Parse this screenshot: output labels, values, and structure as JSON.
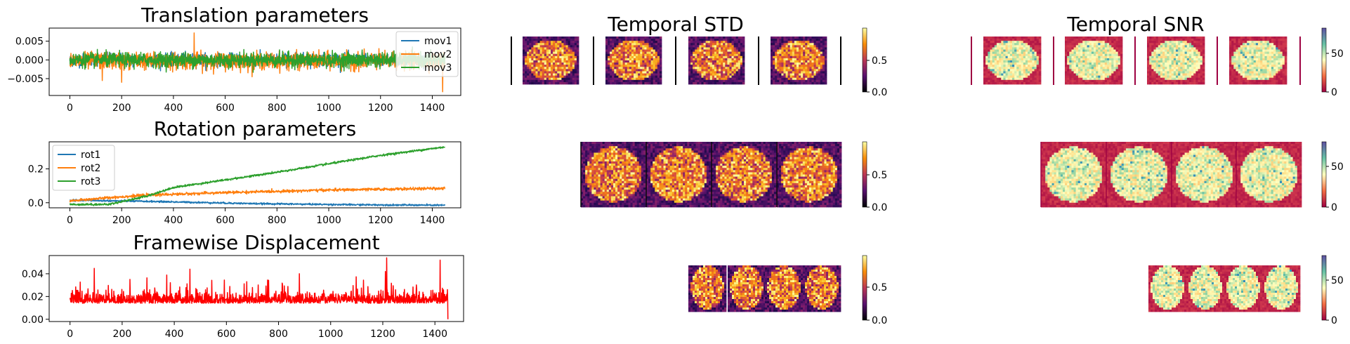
{
  "chart_data": [
    {
      "type": "line",
      "title": "Translation parameters",
      "xlim": [
        -80,
        1510
      ],
      "ylim": [
        -0.0095,
        0.0085
      ],
      "xticks": [
        0,
        200,
        400,
        600,
        800,
        1000,
        1200,
        1400
      ],
      "yticks": [
        0.005,
        0.0,
        -0.005
      ],
      "ytick_labels": [
        "0.005",
        "0.000",
        "−0.005"
      ],
      "legend_position": "top-right",
      "n_points": 1450,
      "series": [
        {
          "name": "mov1",
          "color": "#1f77b4",
          "mean": 0.0,
          "noise": 0.0012,
          "spikes": []
        },
        {
          "name": "mov2",
          "color": "#ff7f0e",
          "mean": -0.0003,
          "noise": 0.0016,
          "spikes": [
            [
              480,
              0.0072
            ],
            [
              1440,
              -0.0085
            ],
            [
              125,
              -0.0055
            ],
            [
              200,
              -0.006
            ]
          ]
        },
        {
          "name": "mov3",
          "color": "#2ca02c",
          "mean": 0.0,
          "noise": 0.0014,
          "spikes": []
        }
      ]
    },
    {
      "type": "line",
      "title": "Rotation parameters",
      "xlim": [
        -80,
        1510
      ],
      "ylim": [
        -0.03,
        0.36
      ],
      "xticks": [
        0,
        200,
        400,
        600,
        800,
        1000,
        1200,
        1400
      ],
      "yticks": [
        0.2,
        0.0
      ],
      "ytick_labels": [
        "0.2",
        "0.0"
      ],
      "legend_position": "top-left",
      "n_points": 1450,
      "series": [
        {
          "name": "rot1",
          "color": "#1f77b4",
          "trend": [
            [
              0,
              0.015
            ],
            [
              300,
              0.008
            ],
            [
              700,
              -0.005
            ],
            [
              1100,
              -0.012
            ],
            [
              1450,
              -0.015
            ]
          ],
          "noise": 0.0025
        },
        {
          "name": "rot2",
          "color": "#ff7f0e",
          "trend": [
            [
              0,
              0.01
            ],
            [
              150,
              0.03
            ],
            [
              300,
              0.045
            ],
            [
              600,
              0.06
            ],
            [
              1000,
              0.075
            ],
            [
              1450,
              0.085
            ]
          ],
          "noise": 0.004
        },
        {
          "name": "rot3",
          "color": "#2ca02c",
          "trend": [
            [
              0,
              -0.01
            ],
            [
              150,
              -0.01
            ],
            [
              300,
              0.04
            ],
            [
              400,
              0.09
            ],
            [
              800,
              0.18
            ],
            [
              1200,
              0.28
            ],
            [
              1450,
              0.33
            ]
          ],
          "noise": 0.003
        }
      ]
    },
    {
      "type": "line",
      "title": "Framewise Displacement",
      "xlim": [
        -80,
        1510
      ],
      "ylim": [
        -0.002,
        0.056
      ],
      "xticks": [
        0,
        200,
        400,
        600,
        800,
        1000,
        1200,
        1400
      ],
      "yticks": [
        0.04,
        0.02,
        0.0
      ],
      "ytick_labels": [
        "0.04",
        "0.02",
        "0.00"
      ],
      "n_points": 1450,
      "series": [
        {
          "name": "",
          "color": "#ff0000",
          "mean": 0.016,
          "noise": 0.005,
          "spikes": [
            [
              1215,
              0.054
            ],
            [
              1420,
              0.052
            ],
            [
              460,
              0.044
            ],
            [
              1210,
              0.042
            ],
            [
              230,
              0.035
            ],
            [
              880,
              0.04
            ]
          ]
        }
      ]
    },
    {
      "type": "heatmap",
      "title": "Temporal STD",
      "colormap": "inferno",
      "colorbar_ticks": [
        "0.0",
        "0.5"
      ],
      "colorbar_range": [
        0,
        0.9
      ]
    },
    {
      "type": "heatmap",
      "title": "Temporal SNR",
      "colormap": "spectral",
      "colorbar_ticks": [
        "0",
        "50"
      ],
      "colorbar_range": [
        0,
        80
      ]
    }
  ]
}
